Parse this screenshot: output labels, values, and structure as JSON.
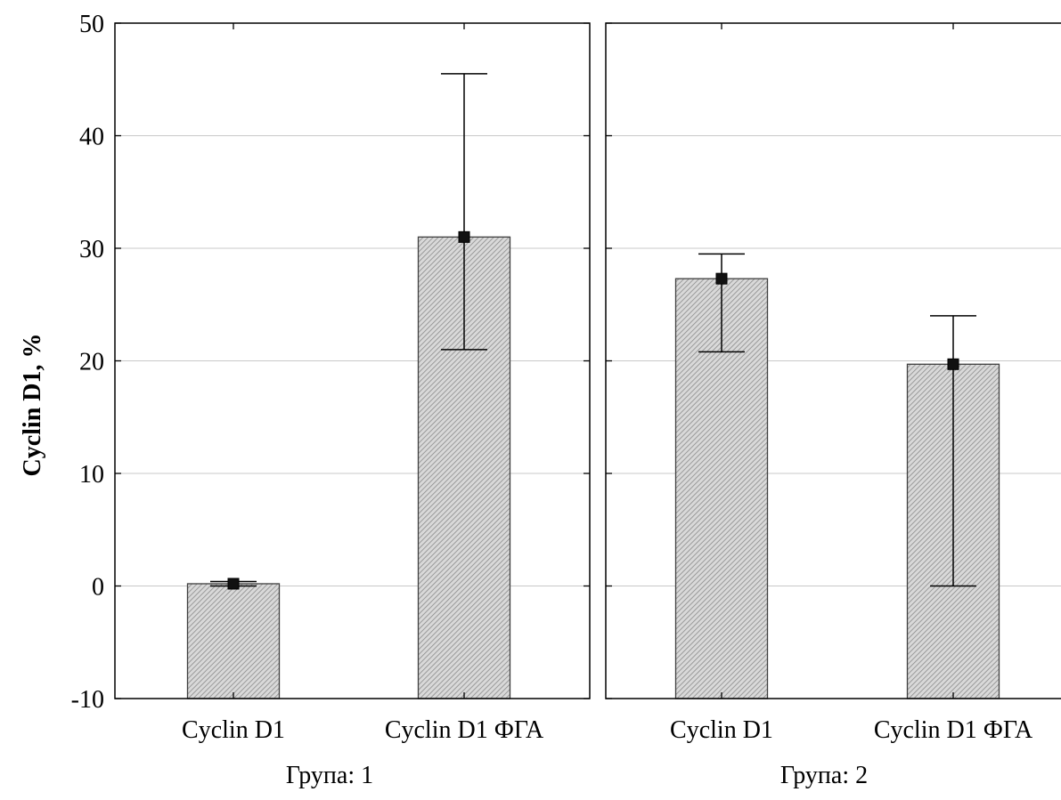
{
  "chart_data": {
    "type": "bar",
    "ylabel": "Cyclin D1, %",
    "ylim": [
      -10,
      50
    ],
    "yticks": [
      "-10",
      "0",
      "10",
      "20",
      "30",
      "40",
      "50"
    ],
    "ytick_values": [
      -10,
      0,
      10,
      20,
      30,
      40,
      50
    ],
    "grid": true,
    "bar_fill": "#c8c8c8",
    "bar_pattern": "diagonal-hatch",
    "panels": [
      {
        "label": "Група: 1",
        "categories": [
          "Cyclin D1",
          "Cyclin D1 ФГА"
        ],
        "values": [
          0.2,
          31.0
        ],
        "err_low": [
          0.0,
          21.0
        ],
        "err_high": [
          0.4,
          45.5
        ]
      },
      {
        "label": "Група: 2",
        "categories": [
          "Cyclin D1",
          "Cyclin D1 ФГА"
        ],
        "values": [
          27.3,
          19.7
        ],
        "err_low": [
          20.8,
          0.0
        ],
        "err_high": [
          29.5,
          24.0
        ]
      }
    ]
  }
}
